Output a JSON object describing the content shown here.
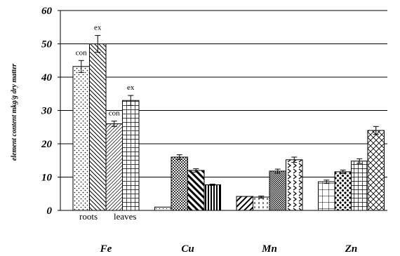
{
  "chart_data": {
    "type": "bar",
    "ylabel": "element content mkg/g dry matter",
    "ylim": [
      0,
      60
    ],
    "yticks": [
      0,
      10,
      20,
      30,
      40,
      50,
      60
    ],
    "grid": true,
    "categories": [
      "Fe",
      "Cu",
      "Mn",
      "Zn"
    ],
    "groups": [
      {
        "category": "Fe",
        "bars": [
          {
            "value": 43.2,
            "error": 1.8,
            "pattern": "dots",
            "label": "con"
          },
          {
            "value": 50.0,
            "error": 2.5,
            "pattern": "diag-back",
            "label": "ex"
          },
          {
            "value": 26.0,
            "error": 0.8,
            "pattern": "diag-fine",
            "label": "con"
          },
          {
            "value": 33.0,
            "error": 1.5,
            "pattern": "grid",
            "label": "ex"
          }
        ]
      },
      {
        "category": "Cu",
        "bars": [
          {
            "value": 1.0,
            "error": 0,
            "pattern": "dots-sparse"
          },
          {
            "value": 16.0,
            "error": 0.7,
            "pattern": "checker"
          },
          {
            "value": 12.0,
            "error": 0.5,
            "pattern": "diag-bold"
          },
          {
            "value": 7.7,
            "error": 0.2,
            "pattern": "vstripes"
          }
        ]
      },
      {
        "category": "Mn",
        "bars": [
          {
            "value": 4.2,
            "error": 0,
            "pattern": "diag-wide"
          },
          {
            "value": 4.0,
            "error": 0.3,
            "pattern": "vdash"
          },
          {
            "value": 11.8,
            "error": 0.6,
            "pattern": "checker-fine"
          },
          {
            "value": 15.2,
            "error": 0.8,
            "pattern": "chevron"
          }
        ]
      },
      {
        "category": "Zn",
        "bars": [
          {
            "value": 8.6,
            "error": 0.5,
            "pattern": "grid-wide"
          },
          {
            "value": 11.6,
            "error": 0.5,
            "pattern": "spots"
          },
          {
            "value": 14.8,
            "error": 0.7,
            "pattern": "grid"
          },
          {
            "value": 24.0,
            "error": 1.2,
            "pattern": "crosshatch"
          }
        ]
      }
    ],
    "annotations": {
      "roots": "roots",
      "leaves": "leaves"
    }
  }
}
